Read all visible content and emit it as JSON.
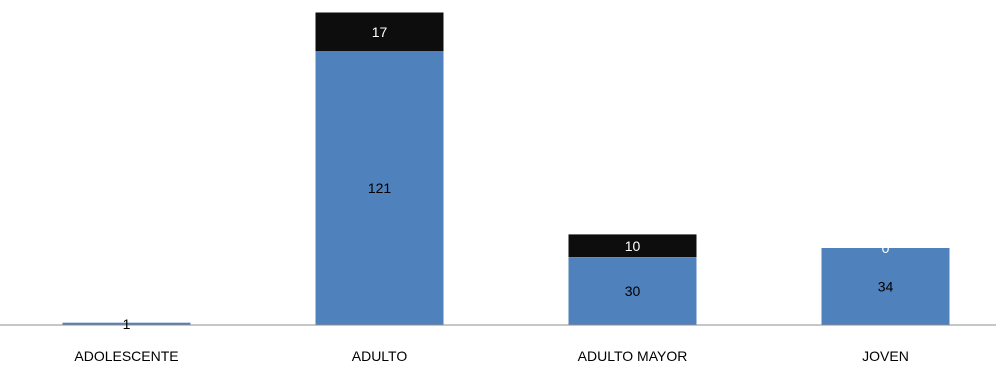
{
  "chart_data": {
    "type": "bar",
    "stacked": true,
    "categories": [
      "ADOLESCENTE",
      "ADULTO",
      "ADULTO MAYOR",
      "JOVEN"
    ],
    "series": [
      {
        "values": [
          1,
          121,
          30,
          34
        ],
        "color": "#4f81bd",
        "label_color": "#000000"
      },
      {
        "values": [
          0,
          17,
          10,
          0
        ],
        "color": "#0d0d0d",
        "label_color": "#ffffff"
      }
    ],
    "data_labels": [
      [
        "1",
        "121",
        "30",
        "34"
      ],
      [
        "",
        "17",
        "10",
        "0"
      ]
    ],
    "ylim": [
      0,
      140
    ],
    "grid": false,
    "legend": "none",
    "title": "",
    "xlabel": "",
    "ylabel": ""
  }
}
